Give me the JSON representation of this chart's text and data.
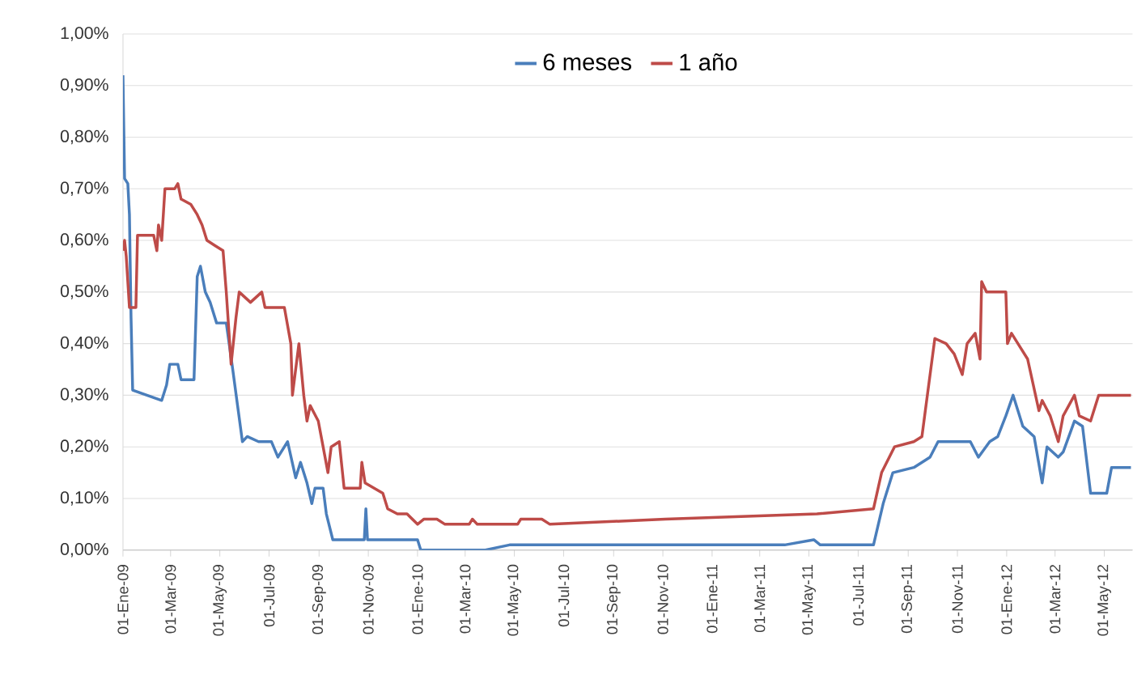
{
  "chart_data": {
    "type": "line",
    "xlim": [
      "2009-01-01",
      "2012-06-05"
    ],
    "xticks": [
      {
        "value": "2009-01-01",
        "label": "01-Ene-09"
      },
      {
        "value": "2009-03-01",
        "label": "01-Mar-09"
      },
      {
        "value": "2009-05-01",
        "label": "01-May-09"
      },
      {
        "value": "2009-07-01",
        "label": "01-Jul-09"
      },
      {
        "value": "2009-09-01",
        "label": "01-Sep-09"
      },
      {
        "value": "2009-11-01",
        "label": "01-Nov-09"
      },
      {
        "value": "2010-01-01",
        "label": "01-Ene-10"
      },
      {
        "value": "2010-03-01",
        "label": "01-Mar-10"
      },
      {
        "value": "2010-05-01",
        "label": "01-May-10"
      },
      {
        "value": "2010-07-01",
        "label": "01-Jul-10"
      },
      {
        "value": "2010-09-01",
        "label": "01-Sep-10"
      },
      {
        "value": "2010-11-01",
        "label": "01-Nov-10"
      },
      {
        "value": "2011-01-01",
        "label": "01-Ene-11"
      },
      {
        "value": "2011-03-01",
        "label": "01-Mar-11"
      },
      {
        "value": "2011-05-01",
        "label": "01-May-11"
      },
      {
        "value": "2011-07-01",
        "label": "01-Jul-11"
      },
      {
        "value": "2011-09-01",
        "label": "01-Sep-11"
      },
      {
        "value": "2011-11-01",
        "label": "01-Nov-11"
      },
      {
        "value": "2012-01-01",
        "label": "01-Ene-12"
      },
      {
        "value": "2012-03-01",
        "label": "01-Mar-12"
      },
      {
        "value": "2012-05-01",
        "label": "01-May-12"
      }
    ],
    "ylim": [
      0,
      1
    ],
    "yticks": [
      {
        "value": 0,
        "label": "0,00%"
      },
      {
        "value": 0.1,
        "label": "0,10%"
      },
      {
        "value": 0.2,
        "label": "0,20%"
      },
      {
        "value": 0.3,
        "label": "0,30%"
      },
      {
        "value": 0.4,
        "label": "0,40%"
      },
      {
        "value": 0.5,
        "label": "0,50%"
      },
      {
        "value": 0.6,
        "label": "0,60%"
      },
      {
        "value": 0.7,
        "label": "0,70%"
      },
      {
        "value": 0.8,
        "label": "0,80%"
      },
      {
        "value": 0.9,
        "label": "0,90%"
      },
      {
        "value": 1,
        "label": "1,00%"
      }
    ],
    "grid": "y",
    "legend": "top",
    "line_style": "solid",
    "series": [
      {
        "name": "6 meses",
        "color": "#4a7ebb",
        "x": [
          "2009-01-01",
          "2009-01-03",
          "2009-01-07",
          "2009-01-09",
          "2009-01-11",
          "2009-01-13",
          "2009-02-18",
          "2009-02-24",
          "2009-02-28",
          "2009-03-10",
          "2009-03-14",
          "2009-03-30",
          "2009-04-03",
          "2009-04-07",
          "2009-04-13",
          "2009-04-19",
          "2009-04-27",
          "2009-05-09",
          "2009-05-17",
          "2009-05-23",
          "2009-05-29",
          "2009-06-04",
          "2009-06-18",
          "2009-07-04",
          "2009-07-12",
          "2009-07-24",
          "2009-08-03",
          "2009-08-09",
          "2009-08-17",
          "2009-08-23",
          "2009-08-27",
          "2009-09-06",
          "2009-09-10",
          "2009-09-18",
          "2009-10-27",
          "2009-10-29",
          "2009-10-31",
          "2010-01-01",
          "2010-01-05",
          "2010-03-26",
          "2010-04-25",
          "2011-04-01",
          "2011-05-07",
          "2011-05-15",
          "2011-07-20",
          "2011-08-01",
          "2011-08-13",
          "2011-09-08",
          "2011-09-28",
          "2011-10-08",
          "2011-11-17",
          "2011-11-27",
          "2011-12-11",
          "2011-12-21",
          "2011-12-31",
          "2012-01-09",
          "2012-01-21",
          "2012-02-04",
          "2012-02-14",
          "2012-02-20",
          "2012-03-05",
          "2012-03-11",
          "2012-03-25",
          "2012-04-04",
          "2012-04-14",
          "2012-05-04",
          "2012-05-10",
          "2012-06-03"
        ],
        "values": [
          0.92,
          0.72,
          0.71,
          0.65,
          0.45,
          0.31,
          0.29,
          0.32,
          0.36,
          0.36,
          0.33,
          0.33,
          0.53,
          0.55,
          0.5,
          0.48,
          0.44,
          0.44,
          0.35,
          0.28,
          0.21,
          0.22,
          0.21,
          0.21,
          0.18,
          0.21,
          0.14,
          0.17,
          0.13,
          0.09,
          0.12,
          0.12,
          0.07,
          0.02,
          0.02,
          0.08,
          0.02,
          0.02,
          0,
          0,
          0.01,
          0.01,
          0.02,
          0.01,
          0.01,
          0.09,
          0.15,
          0.16,
          0.18,
          0.21,
          0.21,
          0.18,
          0.21,
          0.22,
          0.26,
          0.3,
          0.24,
          0.22,
          0.13,
          0.2,
          0.18,
          0.19,
          0.25,
          0.24,
          0.11,
          0.11,
          0.16,
          0.16
        ]
      },
      {
        "name": "1 año",
        "color": "#be4b48",
        "x": [
          "2009-01-01",
          "2009-01-03",
          "2009-01-05",
          "2009-01-09",
          "2009-01-17",
          "2009-01-19",
          "2009-02-08",
          "2009-02-12",
          "2009-02-14",
          "2009-02-18",
          "2009-02-22",
          "2009-03-06",
          "2009-03-10",
          "2009-03-14",
          "2009-03-26",
          "2009-04-03",
          "2009-04-09",
          "2009-04-15",
          "2009-04-25",
          "2009-05-05",
          "2009-05-09",
          "2009-05-15",
          "2009-05-21",
          "2009-05-25",
          "2009-06-08",
          "2009-06-22",
          "2009-06-26",
          "2009-07-20",
          "2009-07-28",
          "2009-07-30",
          "2009-08-07",
          "2009-08-13",
          "2009-08-17",
          "2009-08-21",
          "2009-08-31",
          "2009-09-06",
          "2009-09-12",
          "2009-09-16",
          "2009-09-26",
          "2009-10-02",
          "2009-10-22",
          "2009-10-24",
          "2009-10-28",
          "2009-11-19",
          "2009-11-25",
          "2009-12-07",
          "2009-12-19",
          "2010-01-01",
          "2010-01-09",
          "2010-01-25",
          "2010-02-04",
          "2010-03-06",
          "2010-03-10",
          "2010-03-16",
          "2010-05-05",
          "2010-05-09",
          "2010-06-04",
          "2010-06-14",
          "2010-11-04",
          "2011-05-11",
          "2011-07-20",
          "2011-07-30",
          "2011-08-15",
          "2011-09-08",
          "2011-09-18",
          "2011-10-04",
          "2011-10-18",
          "2011-10-28",
          "2011-11-07",
          "2011-11-13",
          "2011-11-23",
          "2011-11-29",
          "2011-12-01",
          "2011-12-07",
          "2011-12-31",
          "2012-01-02",
          "2012-01-07",
          "2012-01-15",
          "2012-01-27",
          "2012-02-10",
          "2012-02-14",
          "2012-02-24",
          "2012-03-05",
          "2012-03-11",
          "2012-03-25",
          "2012-03-31",
          "2012-04-14",
          "2012-04-24",
          "2012-06-03"
        ],
        "values": [
          0.58,
          0.6,
          0.57,
          0.47,
          0.47,
          0.61,
          0.61,
          0.58,
          0.63,
          0.6,
          0.7,
          0.7,
          0.71,
          0.68,
          0.67,
          0.65,
          0.63,
          0.6,
          0.59,
          0.58,
          0.5,
          0.36,
          0.45,
          0.5,
          0.48,
          0.5,
          0.47,
          0.47,
          0.4,
          0.3,
          0.4,
          0.3,
          0.25,
          0.28,
          0.25,
          0.2,
          0.15,
          0.2,
          0.21,
          0.12,
          0.12,
          0.17,
          0.13,
          0.11,
          0.08,
          0.07,
          0.07,
          0.05,
          0.06,
          0.06,
          0.05,
          0.05,
          0.06,
          0.05,
          0.05,
          0.06,
          0.06,
          0.05,
          0.06,
          0.07,
          0.08,
          0.15,
          0.2,
          0.21,
          0.22,
          0.41,
          0.4,
          0.38,
          0.34,
          0.4,
          0.42,
          0.37,
          0.52,
          0.5,
          0.5,
          0.4,
          0.42,
          0.4,
          0.37,
          0.27,
          0.29,
          0.26,
          0.21,
          0.26,
          0.3,
          0.26,
          0.25,
          0.3,
          0.3
        ]
      }
    ]
  }
}
